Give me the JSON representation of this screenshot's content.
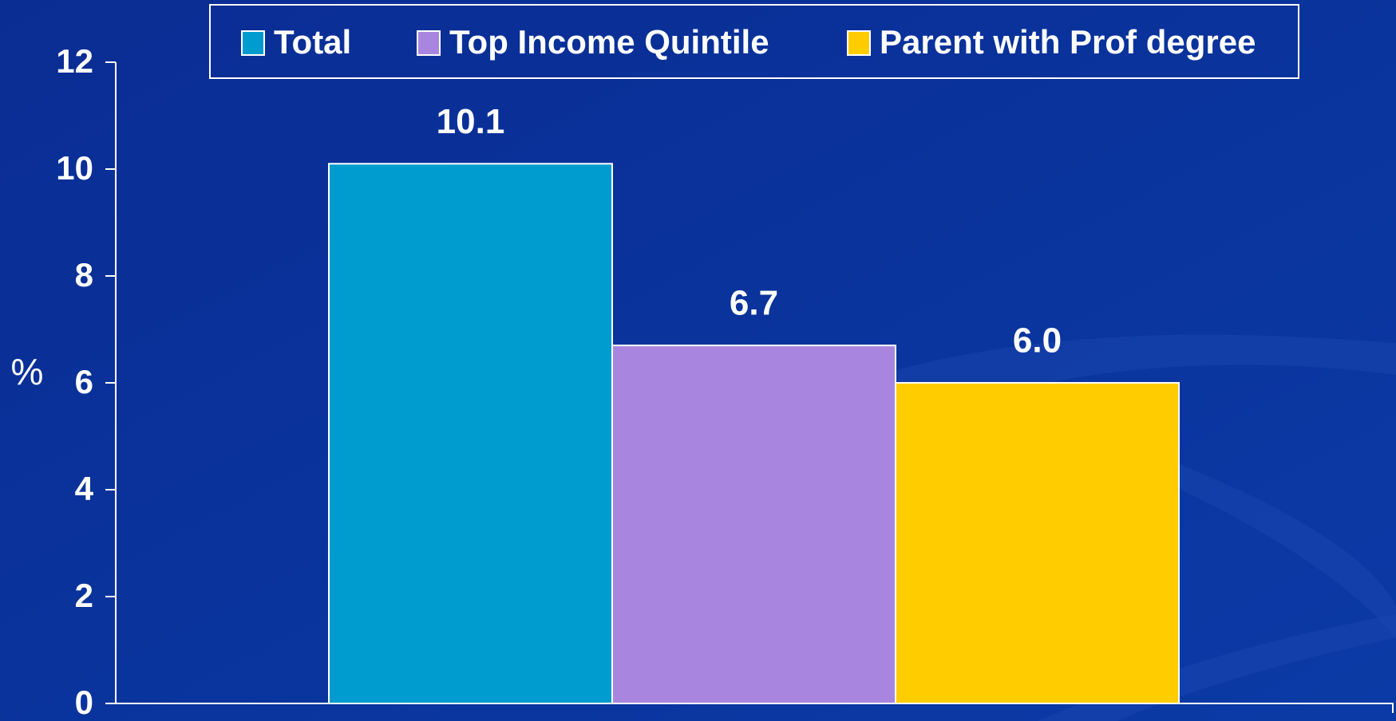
{
  "chart_data": {
    "type": "bar",
    "categories": [
      null
    ],
    "series": [
      {
        "name": "Total",
        "color": "#009ccf",
        "values": [
          10.1
        ]
      },
      {
        "name": "Top Income Quintile",
        "color": "#a886e0",
        "values": [
          6.7
        ]
      },
      {
        "name": "Parent with Prof degree",
        "color": "#ffcc00",
        "values": [
          6.0
        ],
        "value_labels": [
          "6.0"
        ]
      }
    ],
    "y_label": "%",
    "ylim": [
      0,
      12
    ],
    "yticks": [
      0,
      2,
      4,
      6,
      8,
      10,
      12
    ],
    "legend": "top",
    "grid": false
  }
}
